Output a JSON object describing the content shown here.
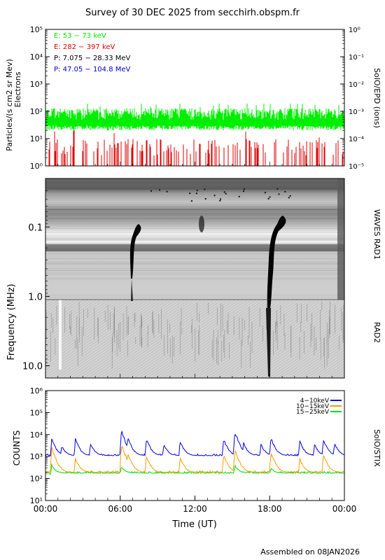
{
  "header": {
    "title": "Survey of 30 DEC 2025 from secchirh.obspm.fr"
  },
  "footer": {
    "assembled": "Assembled on 08JAN2026"
  },
  "chart_data": [
    {
      "type": "line",
      "panel": "epd",
      "ylabel_left": "Particles/(s cm2 sr Mev)",
      "ylabel_left2": "Electrons",
      "ylabel_right": "SolO/EPD (ions)",
      "yscale": "log",
      "ylim_left": [
        1,
        100000
      ],
      "ylim_right": [
        1e-05,
        1
      ],
      "yticks_left": [
        "10⁰",
        "10¹",
        "10²",
        "10³",
        "10⁴",
        "10⁵"
      ],
      "yticks_right": [
        "10⁻⁵",
        "10⁻⁴",
        "10⁻³",
        "10⁻²",
        "10⁻¹",
        "10⁰"
      ],
      "legend": [
        {
          "label": "E: 53 − 73 keV",
          "color": "#00ee00"
        },
        {
          "label": "E: 282 − 397 keV",
          "color": "#dd0000"
        },
        {
          "label": "P: 7.075 − 28.33 MeV",
          "color": "#000000"
        },
        {
          "label": "P: 47.05 − 104.8 MeV",
          "color": "#0000cc"
        }
      ],
      "series": [
        {
          "name": "E: 53 − 73 keV",
          "color": "#00ee00",
          "base": 25,
          "top_typical": 90,
          "top_max": 190
        },
        {
          "name": "E: 282 − 397 keV",
          "color": "#dd0000",
          "base": 1,
          "top_typical": 6,
          "top_max": 20
        }
      ]
    },
    {
      "type": "heatmap",
      "panel": "waves",
      "ylabel": "Frequency (MHz)",
      "ylabel_right_top": "WAVES RAD1",
      "ylabel_right_bottom": "RAD2",
      "yscale": "log",
      "ylim": [
        0.02,
        15
      ],
      "yticks": [
        "0.1",
        "1.0",
        "10.0"
      ],
      "bursts_hours_ut": [
        6.9,
        17.7
      ]
    },
    {
      "type": "line",
      "panel": "stix",
      "ylabel": "COUNTS",
      "ylabel_right": "SolO/STIX",
      "yscale": "log",
      "ylim": [
        10,
        1000000
      ],
      "yticks": [
        "10¹",
        "10²",
        "10³",
        "10⁴",
        "10⁵",
        "10⁶"
      ],
      "xlabel": "Time (UT)",
      "xticks": [
        "00:00",
        "06:00",
        "12:00",
        "18:00",
        "00:00"
      ],
      "xlim_hours": [
        0,
        24
      ],
      "legend": [
        {
          "label": "4−10keV",
          "color": "#0000dd"
        },
        {
          "label": "10−15keV",
          "color": "#ff9900"
        },
        {
          "label": "15−25keV",
          "color": "#00dd00"
        }
      ],
      "series": [
        {
          "name": "4−10keV",
          "color": "#0000dd",
          "baseline": 1100,
          "peaks": [
            [
              0.5,
              6000
            ],
            [
              1.3,
              3000
            ],
            [
              2.4,
              6000
            ],
            [
              3.6,
              4000
            ],
            [
              6.1,
              14000
            ],
            [
              6.6,
              7000
            ],
            [
              8.1,
              6000
            ],
            [
              9.5,
              3500
            ],
            [
              10.8,
              5000
            ],
            [
              14.3,
              6000
            ],
            [
              15.2,
              13000
            ],
            [
              15.9,
              4000
            ],
            [
              17.3,
              3500
            ],
            [
              18.1,
              7000
            ],
            [
              20.4,
              5000
            ],
            [
              21.6,
              3500
            ],
            [
              22.3,
              6000
            ],
            [
              23.2,
              4000
            ]
          ]
        },
        {
          "name": "10−15keV",
          "color": "#ff9900",
          "baseline": 190,
          "peaks": [
            [
              0.5,
              2500
            ],
            [
              2.4,
              800
            ],
            [
              6.1,
              3500
            ],
            [
              6.6,
              1400
            ],
            [
              8.1,
              1000
            ],
            [
              10.8,
              900
            ],
            [
              14.3,
              1200
            ],
            [
              15.2,
              2000
            ],
            [
              18.1,
              1500
            ],
            [
              20.4,
              800
            ],
            [
              22.3,
              1200
            ]
          ]
        },
        {
          "name": "15−25keV",
          "color": "#00dd00",
          "baseline": 175,
          "peaks": [
            [
              0.5,
              400
            ],
            [
              6.1,
              350
            ],
            [
              15.2,
              400
            ],
            [
              18.1,
              300
            ]
          ]
        }
      ]
    }
  ]
}
